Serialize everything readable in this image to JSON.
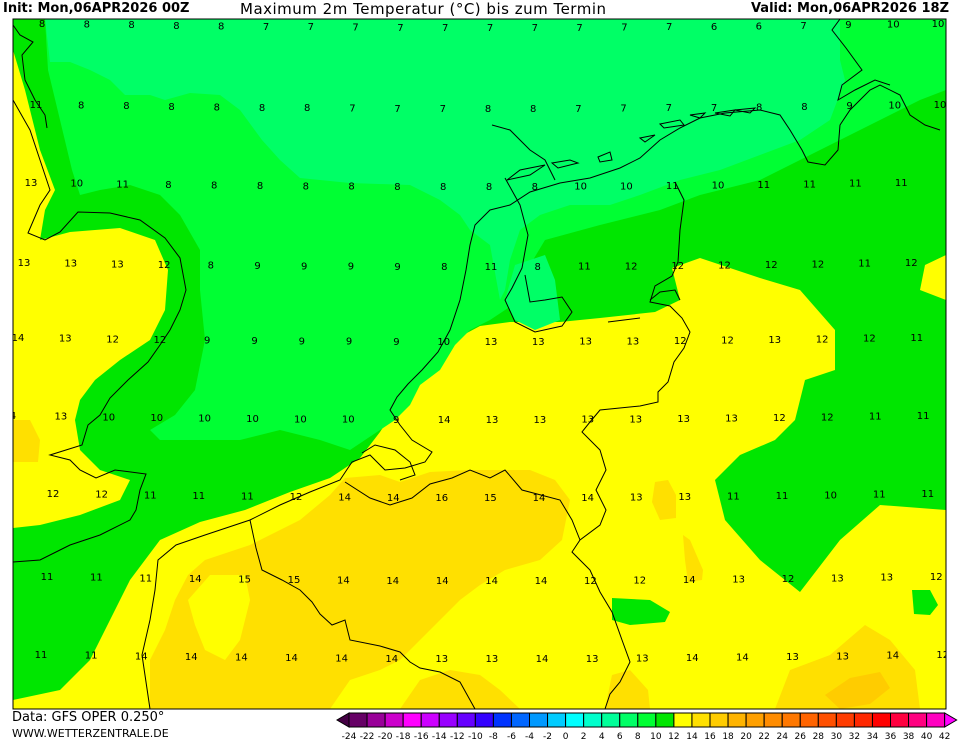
{
  "header": {
    "init": "Init: Mon,06APR2026 00Z",
    "title": "Maximum 2m Temperatur (°C) bis zum Termin",
    "valid": "Valid: Mon,06APR2026 18Z"
  },
  "footer": {
    "data_source": "Data: GFS OPER 0.250°",
    "website": "WWW.WETTERZENTRALE.DE"
  },
  "map": {
    "variable": "Maximum 2m temperature",
    "unit": "°C",
    "fill_colors": {
      "6_8": "#00ff66",
      "8_10": "#00ff33",
      "10_12": "#00e600",
      "12_14": "#ffff00",
      "14_16": "#ffe000",
      "16_18": "#ffcc00"
    },
    "value_rows": [
      [
        "8",
        "8",
        "8",
        "8",
        "8",
        "7",
        "7",
        "7",
        "7",
        "7",
        "7",
        "7",
        "7",
        "7",
        "7",
        "6",
        "6",
        "7",
        "9",
        "10",
        "10"
      ],
      [
        "11",
        "8",
        "8",
        "8",
        "8",
        "8",
        "8",
        "7",
        "7",
        "7",
        "8",
        "8",
        "7",
        "7",
        "7",
        "7",
        "8",
        "8",
        "9",
        "10",
        "10"
      ],
      [
        "13",
        "10",
        "11",
        "8",
        "8",
        "8",
        "8",
        "8",
        "8",
        "8",
        "8",
        "8",
        "10",
        "10",
        "11",
        "10",
        "11",
        "11",
        "11",
        "11"
      ],
      [
        "13",
        "13",
        "13",
        "12",
        "8",
        "9",
        "9",
        "9",
        "9",
        "8",
        "11",
        "8",
        "11",
        "12",
        "12",
        "12",
        "12",
        "12",
        "11",
        "12"
      ],
      [
        "14",
        "13",
        "12",
        "12",
        "9",
        "9",
        "9",
        "9",
        "9",
        "10",
        "13",
        "13",
        "13",
        "13",
        "12",
        "12",
        "13",
        "12",
        "12",
        "11"
      ],
      [
        "4",
        "13",
        "10",
        "10",
        "10",
        "10",
        "10",
        "10",
        "9",
        "14",
        "13",
        "13",
        "13",
        "13",
        "13",
        "13",
        "12",
        "12",
        "11",
        "11"
      ],
      [
        "12",
        "12",
        "11",
        "11",
        "11",
        "12",
        "14",
        "14",
        "16",
        "15",
        "14",
        "14",
        "13",
        "13",
        "11",
        "11",
        "10",
        "11",
        "11"
      ],
      [
        "11",
        "11",
        "11",
        "14",
        "15",
        "15",
        "14",
        "14",
        "14",
        "14",
        "14",
        "12",
        "12",
        "14",
        "13",
        "12",
        "13",
        "13",
        "12"
      ],
      [
        "11",
        "11",
        "14",
        "14",
        "14",
        "14",
        "14",
        "14",
        "13",
        "13",
        "14",
        "13",
        "13",
        "14",
        "14",
        "13",
        "13",
        "14",
        "12"
      ]
    ]
  },
  "legend": {
    "ticks": [
      "-24",
      "-22",
      "-20",
      "-18",
      "-16",
      "-14",
      "-12",
      "-10",
      "-8",
      "-6",
      "-4",
      "-2",
      "0",
      "2",
      "4",
      "6",
      "8",
      "10",
      "12",
      "14",
      "16",
      "18",
      "20",
      "22",
      "24",
      "26",
      "28",
      "30",
      "32",
      "34",
      "36",
      "38",
      "40",
      "42"
    ],
    "low_arrow_color": "#440044",
    "high_arrow_color": "#ff00ff",
    "colors": [
      "#660066",
      "#990099",
      "#cc00cc",
      "#ff00ff",
      "#cc00ff",
      "#9900ff",
      "#6600ff",
      "#3300ff",
      "#0033ff",
      "#0066ff",
      "#0099ff",
      "#00ccff",
      "#00ffff",
      "#00ffcc",
      "#00ff99",
      "#00ff66",
      "#00ff33",
      "#00e600",
      "#ffff00",
      "#ffe000",
      "#ffcc00",
      "#ffb400",
      "#ffa000",
      "#ff8c00",
      "#ff7800",
      "#ff6400",
      "#ff5000",
      "#ff3c00",
      "#ff2800",
      "#ff0000",
      "#ff0040",
      "#ff0080",
      "#ff00c0"
    ]
  }
}
